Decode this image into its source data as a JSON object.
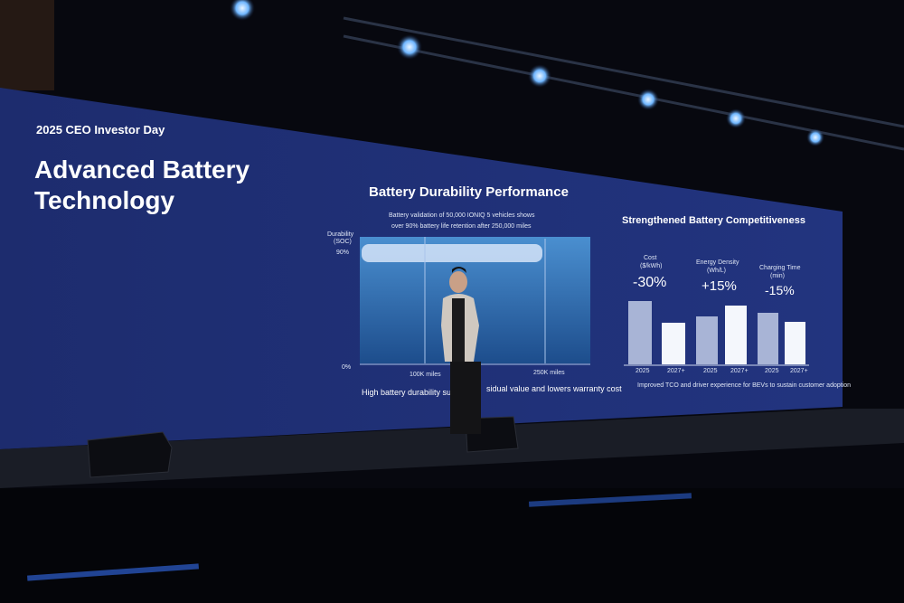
{
  "slide": {
    "event": "2025 CEO Investor Day",
    "title_lines": [
      "Advanced Battery",
      "Technology"
    ],
    "left_panel": {
      "title": "Battery Durability Performance",
      "subtitle_lines": [
        "Battery validation of 50,000 IONIQ 5 vehicles shows",
        "over 90% battery life retention after 250,000 miles"
      ],
      "y_axis_label_lines": [
        "Durability",
        "(SOC)"
      ],
      "y_labels": [
        "90%",
        "0%"
      ],
      "x_labels": [
        "100K miles",
        "250K miles"
      ],
      "caption_parts": [
        "High battery durability su",
        "sidual value and lowers warranty cost"
      ]
    },
    "right_panel": {
      "title": "Strengthened Battery Competitiveness",
      "metrics": [
        {
          "label_lines": [
            "Cost",
            "($/kWh)"
          ],
          "change": "-30%",
          "years": [
            "2025",
            "2027+"
          ]
        },
        {
          "label_lines": [
            "Energy Density",
            "(Wh/L)"
          ],
          "change": "+15%",
          "years": [
            "2025",
            "2027+"
          ]
        },
        {
          "label_lines": [
            "Charging Time",
            "(min)"
          ],
          "change": "-15%",
          "years": [
            "2025",
            "2027+"
          ]
        }
      ],
      "caption": "Improved TCO and driver experience for BEVs to sustain customer adoption"
    }
  }
}
